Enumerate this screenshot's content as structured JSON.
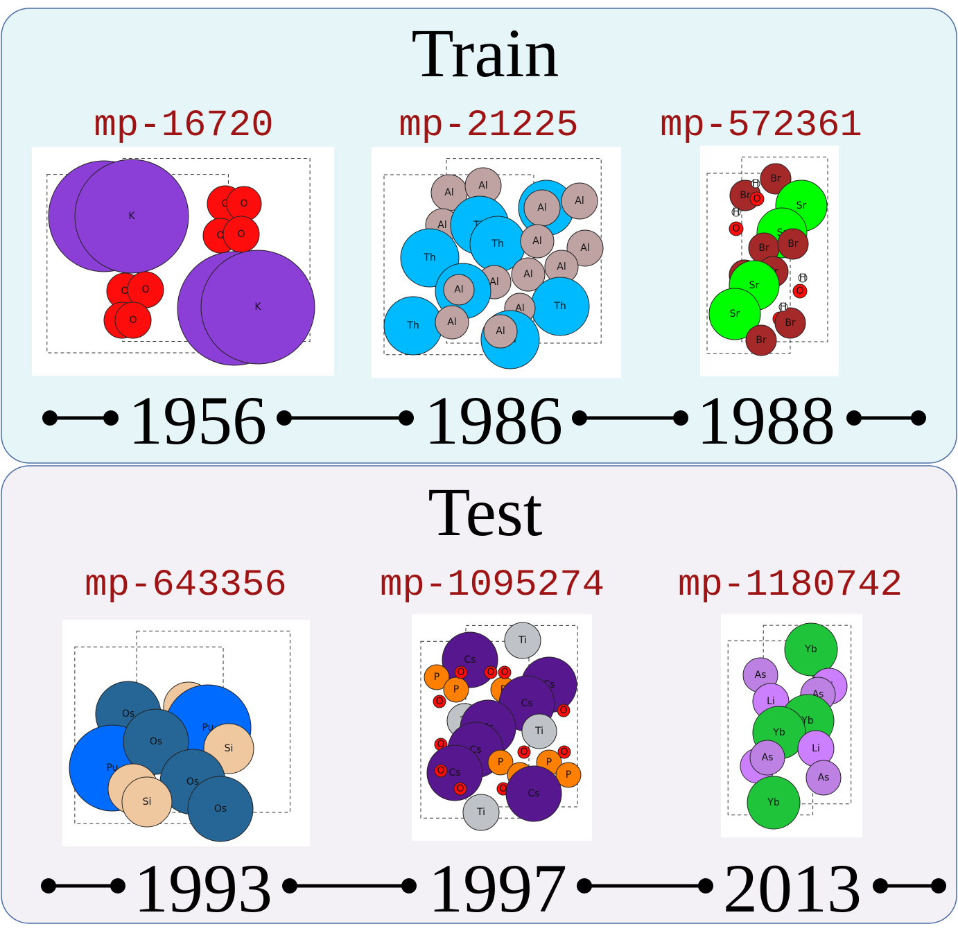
{
  "panels": [
    {
      "title": "Train",
      "items": [
        {
          "id": "mp-16720",
          "year": "1956",
          "atoms": [
            {
              "label": "K",
              "color": "#8b3fd6"
            },
            {
              "label": "K",
              "color": "#8b3fd6"
            },
            {
              "label": "O",
              "color": "#ff0d0d"
            },
            {
              "label": "O",
              "color": "#ff0d0d"
            },
            {
              "label": "O",
              "color": "#ff0d0d"
            },
            {
              "label": "O",
              "color": "#ff0d0d"
            },
            {
              "label": "O",
              "color": "#ff0d0d"
            },
            {
              "label": "O",
              "color": "#ff0d0d"
            },
            {
              "label": "O",
              "color": "#ff0d0d"
            },
            {
              "label": "O",
              "color": "#ff0d0d"
            },
            {
              "label": "K",
              "color": "#8b3fd6"
            },
            {
              "label": "K",
              "color": "#8b3fd6"
            }
          ]
        },
        {
          "id": "mp-21225",
          "year": "1986",
          "atoms": [
            {
              "label": "Al",
              "color": "#bfa2a2"
            },
            {
              "label": "Al",
              "color": "#bfa2a2"
            },
            {
              "label": "Th",
              "color": "#00baff"
            },
            {
              "label": "Al",
              "color": "#bfa2a2"
            },
            {
              "label": "Al",
              "color": "#bfa2a2"
            },
            {
              "label": "Al",
              "color": "#bfa2a2"
            },
            {
              "label": "Th",
              "color": "#00baff"
            },
            {
              "label": "Th",
              "color": "#00baff"
            },
            {
              "label": "Al",
              "color": "#bfa2a2"
            },
            {
              "label": "Al",
              "color": "#bfa2a2"
            },
            {
              "label": "Th",
              "color": "#00baff"
            },
            {
              "label": "Al",
              "color": "#bfa2a2"
            },
            {
              "label": "Al",
              "color": "#bfa2a2"
            },
            {
              "label": "Al",
              "color": "#bfa2a2"
            },
            {
              "label": "Th",
              "color": "#00baff"
            },
            {
              "label": "Al",
              "color": "#bfa2a2"
            },
            {
              "label": "Th",
              "color": "#00baff"
            },
            {
              "label": "Al",
              "color": "#bfa2a2"
            },
            {
              "label": "Th",
              "color": "#00baff"
            },
            {
              "label": "Al",
              "color": "#bfa2a2"
            },
            {
              "label": "Th",
              "color": "#00baff"
            },
            {
              "label": "Al",
              "color": "#bfa2a2"
            }
          ]
        },
        {
          "id": "mp-572361",
          "year": "1988",
          "atoms": [
            {
              "label": "Br",
              "color": "#a62929"
            },
            {
              "label": "Br",
              "color": "#a62929"
            },
            {
              "label": "O",
              "color": "#ff0d0d"
            },
            {
              "label": "Sr",
              "color": "#00ff00"
            },
            {
              "label": "Sr",
              "color": "#00ff00"
            },
            {
              "label": "O",
              "color": "#ff0d0d"
            },
            {
              "label": "Br",
              "color": "#a62929"
            },
            {
              "label": "Br",
              "color": "#a62929"
            },
            {
              "label": "Br",
              "color": "#a62929"
            },
            {
              "label": "Br",
              "color": "#a62929"
            },
            {
              "label": "Sr",
              "color": "#00ff00"
            },
            {
              "label": "O",
              "color": "#ff0d0d"
            },
            {
              "label": "Sr",
              "color": "#00ff00"
            },
            {
              "label": "O",
              "color": "#ff0d0d"
            },
            {
              "label": "Br",
              "color": "#a62929"
            },
            {
              "label": "Br",
              "color": "#a62929"
            },
            {
              "label": "H",
              "color": "#ffffff"
            },
            {
              "label": "H",
              "color": "#ffffff"
            },
            {
              "label": "H",
              "color": "#ffffff"
            },
            {
              "label": "H",
              "color": "#ffffff"
            }
          ]
        }
      ]
    },
    {
      "title": "Test",
      "items": [
        {
          "id": "mp-643356",
          "year": "1993",
          "atoms": [
            {
              "label": "Si",
              "color": "#f0c8a0"
            },
            {
              "label": "Pu",
              "color": "#006bff"
            },
            {
              "label": "Os",
              "color": "#266696"
            },
            {
              "label": "Pu",
              "color": "#006bff"
            },
            {
              "label": "Os",
              "color": "#266696"
            },
            {
              "label": "Si",
              "color": "#f0c8a0"
            },
            {
              "label": "Os",
              "color": "#266696"
            },
            {
              "label": "Si",
              "color": "#f0c8a0"
            },
            {
              "label": "Si",
              "color": "#f0c8a0"
            },
            {
              "label": "Os",
              "color": "#266696"
            }
          ]
        },
        {
          "id": "mp-1095274",
          "year": "1997",
          "atoms": [
            {
              "label": "Ti",
              "color": "#bfc2c7"
            },
            {
              "label": "Cs",
              "color": "#57178f"
            },
            {
              "label": "Cs",
              "color": "#57178f"
            },
            {
              "label": "P",
              "color": "#ff8000"
            },
            {
              "label": "P",
              "color": "#ff8000"
            },
            {
              "label": "P",
              "color": "#ff8000"
            },
            {
              "label": "O",
              "color": "#ff0d0d"
            },
            {
              "label": "O",
              "color": "#ff0d0d"
            },
            {
              "label": "O",
              "color": "#ff0d0d"
            },
            {
              "label": "O",
              "color": "#ff0d0d"
            },
            {
              "label": "O",
              "color": "#ff0d0d"
            },
            {
              "label": "O",
              "color": "#ff0d0d"
            },
            {
              "label": "Cs",
              "color": "#57178f"
            },
            {
              "label": "Ti",
              "color": "#bfc2c7"
            },
            {
              "label": "Cs",
              "color": "#57178f"
            },
            {
              "label": "Ti",
              "color": "#bfc2c7"
            },
            {
              "label": "Cs",
              "color": "#57178f"
            },
            {
              "label": "O",
              "color": "#ff0d0d"
            },
            {
              "label": "O",
              "color": "#ff0d0d"
            },
            {
              "label": "O",
              "color": "#ff0d0d"
            },
            {
              "label": "P",
              "color": "#ff8000"
            },
            {
              "label": "P",
              "color": "#ff8000"
            },
            {
              "label": "P",
              "color": "#ff8000"
            },
            {
              "label": "Cs",
              "color": "#57178f"
            },
            {
              "label": "P",
              "color": "#ff8000"
            },
            {
              "label": "O",
              "color": "#ff0d0d"
            },
            {
              "label": "O",
              "color": "#ff0d0d"
            },
            {
              "label": "O",
              "color": "#ff0d0d"
            },
            {
              "label": "O",
              "color": "#ff0d0d"
            },
            {
              "label": "Cs",
              "color": "#57178f"
            },
            {
              "label": "Ti",
              "color": "#bfc2c7"
            }
          ]
        },
        {
          "id": "mp-1180742",
          "year": "2013",
          "atoms": [
            {
              "label": "Yb",
              "color": "#1fc43a"
            },
            {
              "label": "As",
              "color": "#bd80e3"
            },
            {
              "label": "Li",
              "color": "#cc80ff"
            },
            {
              "label": "As",
              "color": "#bd80e3"
            },
            {
              "label": "Li",
              "color": "#cc80ff"
            },
            {
              "label": "Yb",
              "color": "#1fc43a"
            },
            {
              "label": "Yb",
              "color": "#1fc43a"
            },
            {
              "label": "Li",
              "color": "#cc80ff"
            },
            {
              "label": "Li",
              "color": "#cc80ff"
            },
            {
              "label": "As",
              "color": "#bd80e3"
            },
            {
              "label": "As",
              "color": "#bd80e3"
            },
            {
              "label": "Yb",
              "color": "#1fc43a"
            }
          ]
        }
      ]
    }
  ]
}
